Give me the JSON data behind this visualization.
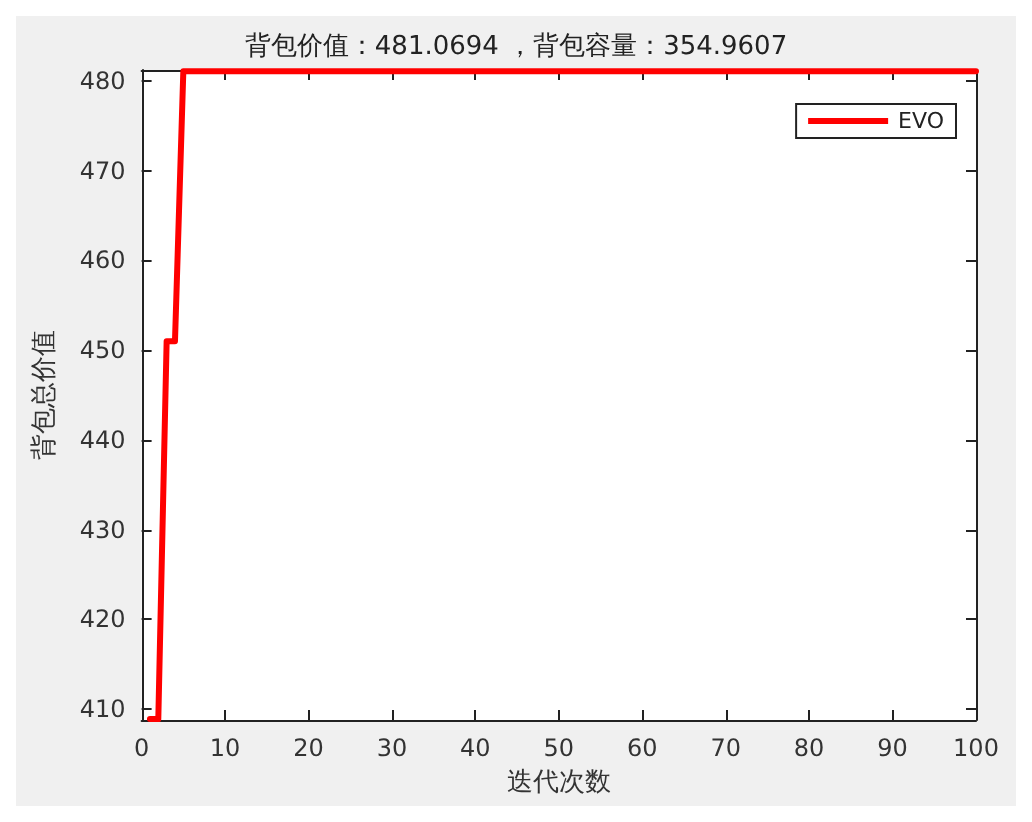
{
  "chart_data": {
    "type": "line",
    "title": "背包价值：481.0694 ，背包容量：354.9607",
    "xlabel": "迭代次数",
    "ylabel": "背包总价值",
    "xlim": [
      0,
      100
    ],
    "xticks": [
      0,
      10,
      20,
      30,
      40,
      50,
      60,
      70,
      80,
      90,
      100
    ],
    "ylim": [
      408.8,
      481.2
    ],
    "yticks": [
      410,
      420,
      430,
      440,
      450,
      460,
      470,
      480
    ],
    "series": [
      {
        "name": "EVO",
        "color": "#ff0000",
        "x": [
          1,
          2,
          3,
          4,
          5,
          100
        ],
        "values": [
          408.9,
          408.9,
          451,
          451,
          481.07,
          481.07
        ]
      }
    ],
    "legend": "top right",
    "grid": false,
    "marker": "none",
    "line_style": "solid"
  }
}
